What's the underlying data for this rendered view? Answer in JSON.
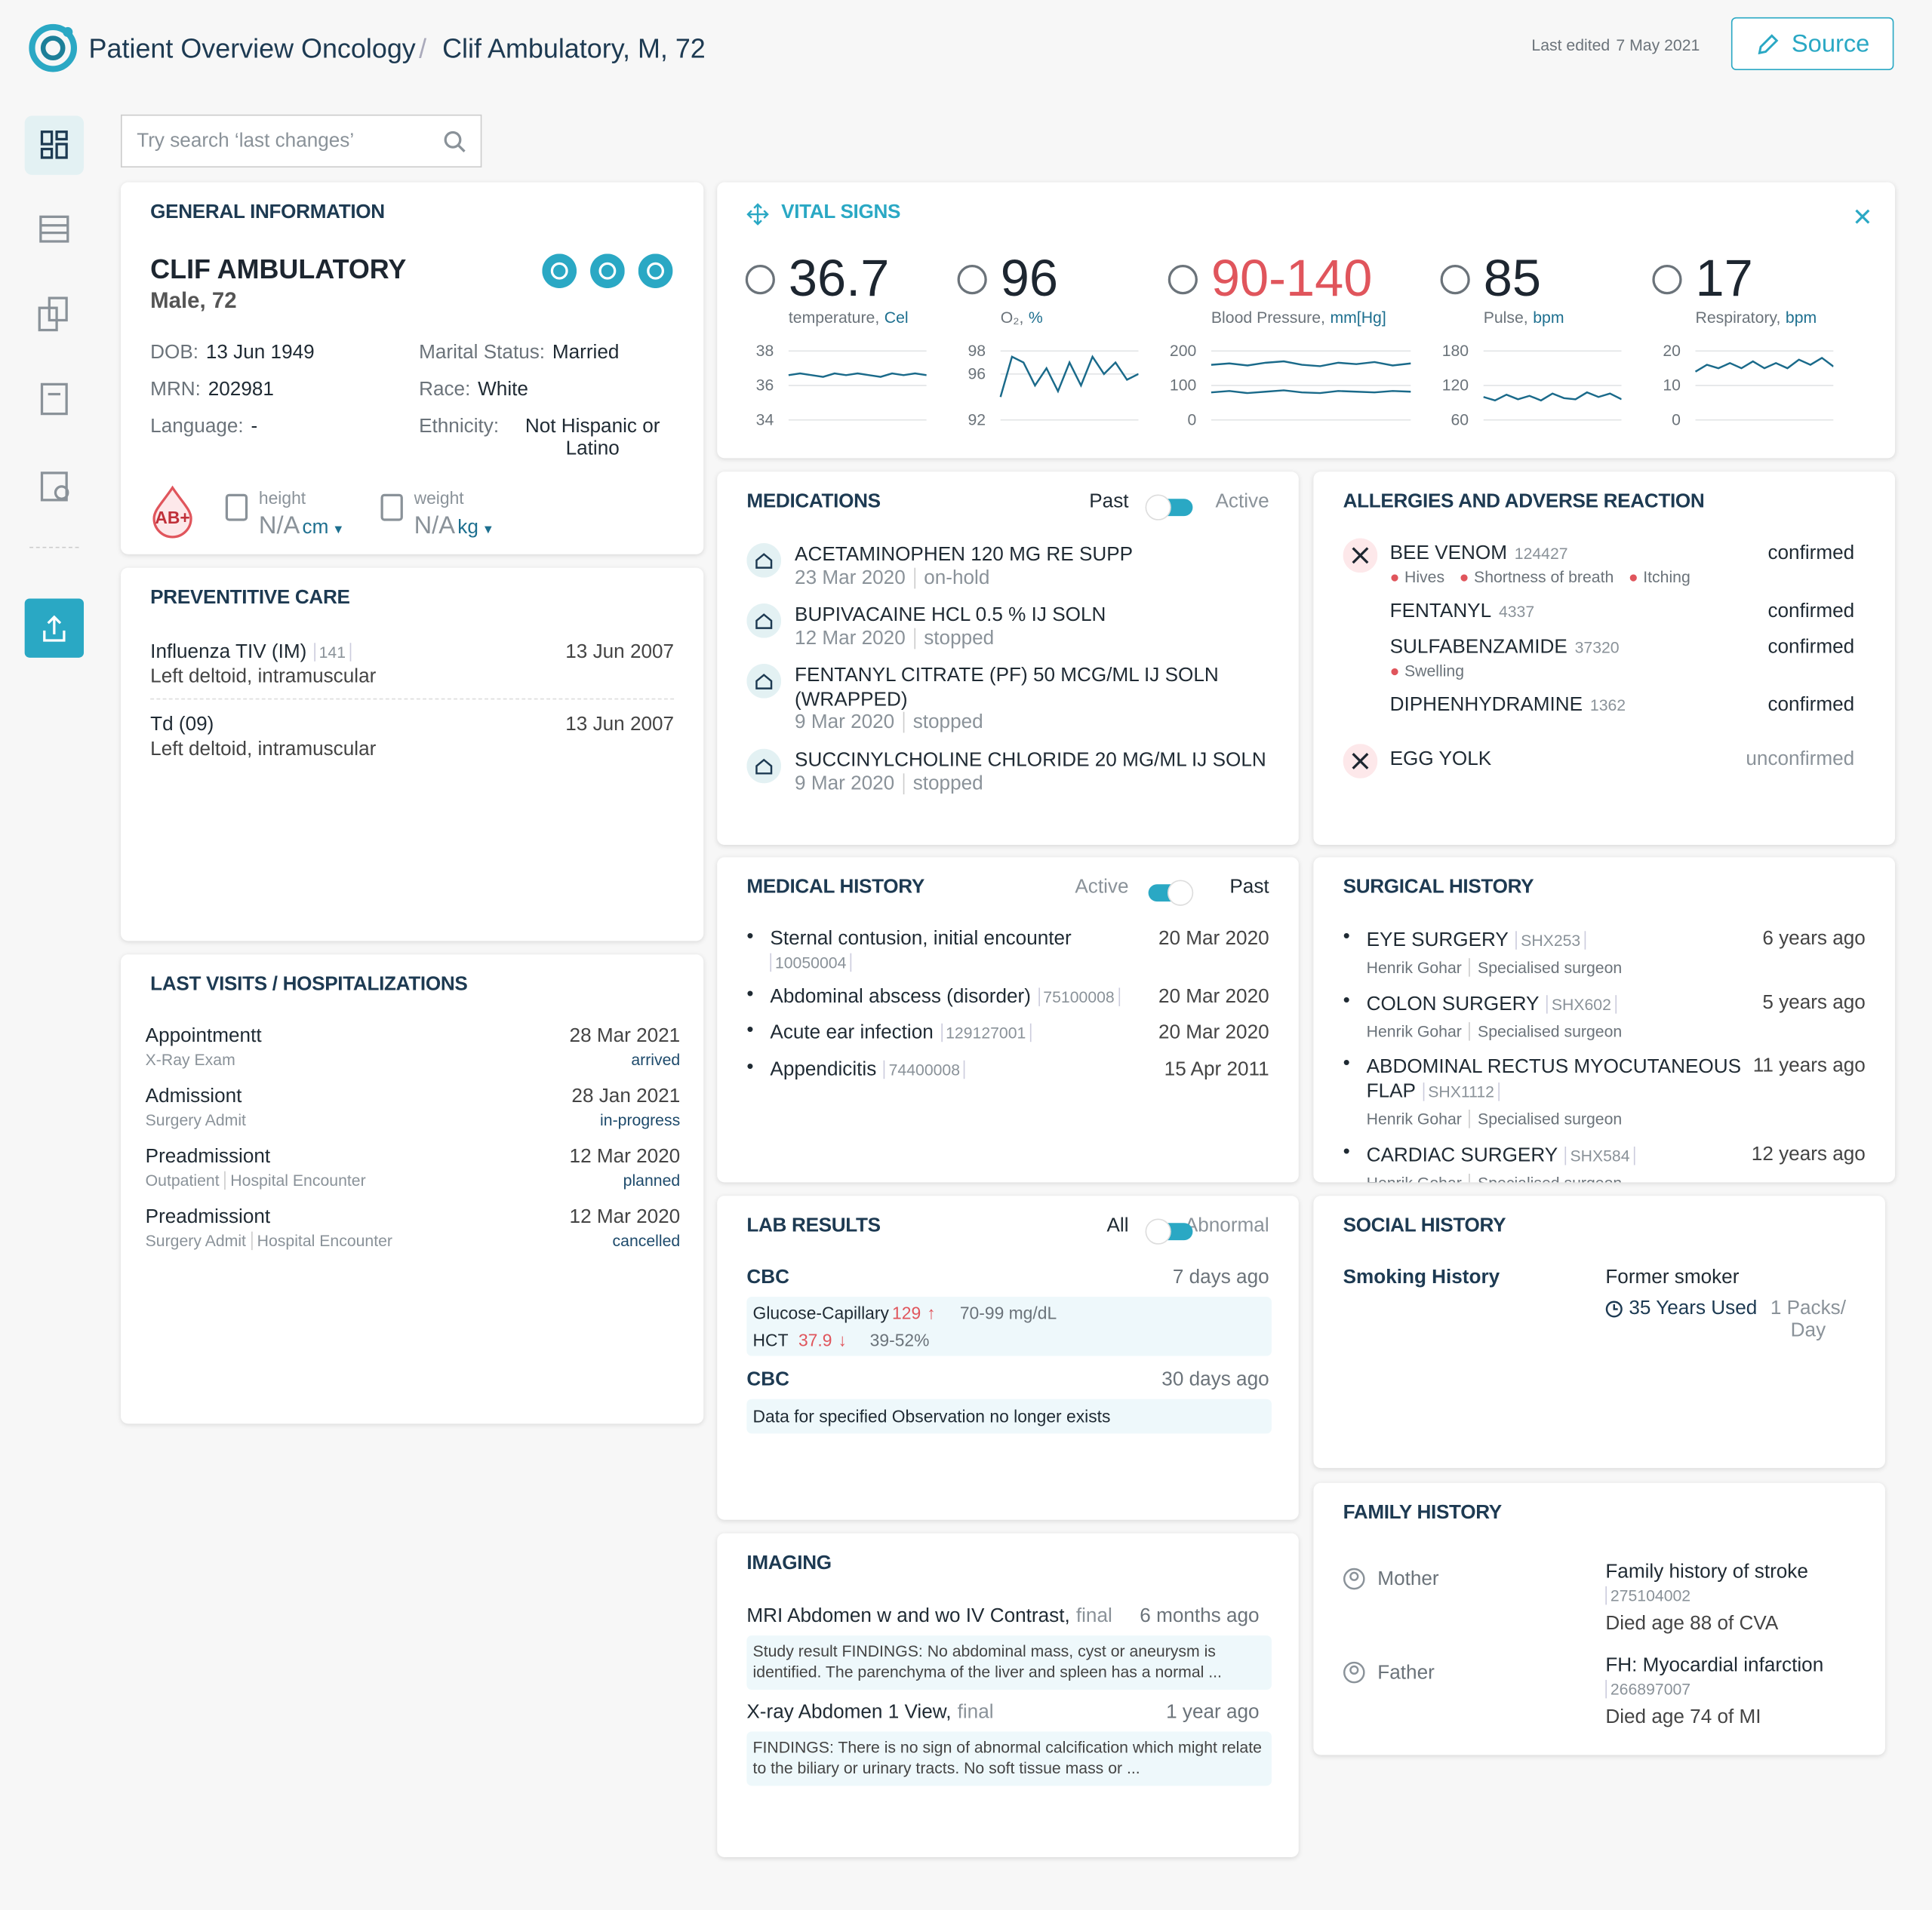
{
  "header": {
    "app_title": "Patient Overview Oncology",
    "separator": "/",
    "patient": "Clif Ambulatory, M, 72",
    "last_edited_label": "Last edited",
    "last_edited_date": "7 May 2021",
    "source_button": "Source"
  },
  "search_placeholder": "Try search ‘last changes’",
  "general": {
    "title": "GENERAL INFORMATION",
    "name": "CLIF AMBULATORY",
    "sex_age": "Male, 72",
    "fields_left": [
      {
        "label": "DOB:",
        "value": "13 Jun 1949"
      },
      {
        "label": "MRN:",
        "value": "202981"
      },
      {
        "label": "Language:",
        "value": "-"
      }
    ],
    "fields_right": [
      {
        "label": "Marital Status:",
        "value": "Married"
      },
      {
        "label": "Race:",
        "value": "White"
      },
      {
        "label": "Ethnicity:",
        "value": "Not Hispanic or Latino"
      }
    ],
    "blood_type": "AB+",
    "height_label": "height",
    "height_value": "N/A",
    "height_unit": "cm",
    "weight_label": "weight",
    "weight_value": "N/A",
    "weight_unit": "kg"
  },
  "preventive": {
    "title": "PREVENTITIVE CARE",
    "items": [
      {
        "name": "Influenza TIV (IM)",
        "code": "141",
        "site": "Left deltoid, intramuscular",
        "date": "13 Jun 2007"
      },
      {
        "name": "Td (09)",
        "site": "Left deltoid, intramuscular",
        "date": "13 Jun 2007"
      }
    ]
  },
  "visits": {
    "title": "LAST VISITS / HOSPITALIZATIONS",
    "items": [
      {
        "type": "Appointmentt",
        "details": [
          "X-Ray Exam"
        ],
        "date": "28 Mar 2021",
        "status": "arrived"
      },
      {
        "type": "Admissiont",
        "details": [
          "Surgery Admit"
        ],
        "date": "28 Jan 2021",
        "status": "in-progress"
      },
      {
        "type": "Preadmissiont",
        "details": [
          "Outpatient",
          "Hospital Encounter"
        ],
        "date": "12 Mar 2020",
        "status": "planned"
      },
      {
        "type": "Preadmissiont",
        "details": [
          "Surgery Admit",
          "Hospital Encounter"
        ],
        "date": "12 Mar 2020",
        "status": "cancelled"
      }
    ]
  },
  "vitals": {
    "title": "VITAL SIGNS",
    "items": [
      {
        "value": "36.7",
        "label": "temperature,",
        "unit": "Cel",
        "ylim": [
          34,
          38
        ],
        "yticks": [
          38,
          36,
          34
        ],
        "series": [
          [
            36.6,
            36.7,
            36.6,
            36.5,
            36.7,
            36.6,
            36.7,
            36.6,
            36.5,
            36.7,
            36.6,
            36.7,
            36.6
          ]
        ]
      },
      {
        "value": "96",
        "label": "O₂,",
        "unit": "%",
        "ylim": [
          92,
          98
        ],
        "yticks": [
          98,
          96,
          92
        ],
        "series": [
          [
            94,
            97.5,
            97,
            95,
            96.5,
            94.5,
            97,
            95,
            97.5,
            96,
            97,
            95.5,
            96
          ]
        ]
      },
      {
        "value": "90-140",
        "label": "Blood Pressure,",
        "unit": "mm[Hg]",
        "value_color": "#e0555c",
        "ylim": [
          0,
          200
        ],
        "yticks": [
          200,
          100,
          0
        ],
        "series": [
          [
            160,
            164,
            158,
            166,
            170,
            160,
            156,
            166,
            162,
            168,
            158,
            164
          ],
          [
            80,
            84,
            78,
            82,
            86,
            80,
            78,
            84,
            82,
            80,
            84,
            82
          ]
        ]
      },
      {
        "value": "85",
        "label": "Pulse,",
        "unit": "bpm",
        "ylim": [
          60,
          180
        ],
        "yticks": [
          180,
          120,
          60
        ],
        "series": [
          [
            100,
            94,
            104,
            96,
            102,
            94,
            106,
            98,
            96,
            108,
            100,
            106,
            96
          ]
        ]
      },
      {
        "value": "17",
        "label": "Respiratory,",
        "unit": "bpm",
        "ylim": [
          0,
          20
        ],
        "yticks": [
          20,
          10,
          0
        ],
        "series": [
          [
            14,
            16,
            15,
            16.5,
            15,
            17,
            15,
            16.5,
            15,
            17.5,
            16,
            18,
            15.5
          ]
        ]
      }
    ]
  },
  "medications": {
    "title": "MEDICATIONS",
    "toggle_left": "Past",
    "toggle_right": "Active",
    "items": [
      {
        "name": "ACETAMINOPHEN 120 MG RE SUPP",
        "date": "23 Mar 2020",
        "status": "on-hold"
      },
      {
        "name": "BUPIVACAINE HCL 0.5 % IJ SOLN",
        "date": "12 Mar 2020",
        "status": "stopped"
      },
      {
        "name": "FENTANYL CITRATE (PF) 50 MCG/ML IJ SOLN (WRAPPED)",
        "date": "9 Mar 2020",
        "status": "stopped"
      },
      {
        "name": "SUCCINYLCHOLINE CHLORIDE 20 MG/ML IJ SOLN",
        "date": "9 Mar 2020",
        "status": "stopped"
      }
    ]
  },
  "allergies": {
    "title": "ALLERGIES AND ADVERSE REACTION",
    "items": [
      {
        "name": "BEE VENOM",
        "code": "124427",
        "reactions": [
          "Hives",
          "Shortness of breath",
          "Itching"
        ],
        "status": "confirmed"
      },
      {
        "name": "FENTANYL",
        "code": "4337",
        "reactions": [],
        "status": "confirmed"
      },
      {
        "name": "SULFABENZAMIDE",
        "code": "37320",
        "reactions": [
          "Swelling"
        ],
        "status": "confirmed"
      },
      {
        "name": "DIPHENHYDRAMINE",
        "code": "1362",
        "reactions": [],
        "status": "confirmed"
      },
      {
        "name": "EGG YOLK",
        "reactions": [],
        "status": "unconfirmed"
      }
    ]
  },
  "medical_history": {
    "title": "MEDICAL HISTORY",
    "toggle_left": "Active",
    "toggle_right": "Past",
    "items": [
      {
        "name": "Sternal contusion, initial encounter",
        "code": "10050004",
        "date": "20 Mar 2020"
      },
      {
        "name": "Abdominal abscess (disorder)",
        "code": "75100008",
        "date": "20 Mar 2020"
      },
      {
        "name": "Acute ear infection",
        "code": "129127001",
        "date": "20 Mar 2020"
      },
      {
        "name": "Appendicitis",
        "code": "74400008",
        "date": "15 Apr 2011"
      }
    ]
  },
  "surgical_history": {
    "title": "SURGICAL HISTORY",
    "items": [
      {
        "name": "EYE SURGERY",
        "code": "SHX253",
        "surgeon": "Henrik Gohar",
        "role": "Specialised surgeon",
        "when": "6 years ago"
      },
      {
        "name": "COLON SURGERY",
        "code": "SHX602",
        "surgeon": "Henrik Gohar",
        "role": "Specialised surgeon",
        "when": "5 years ago"
      },
      {
        "name": "ABDOMINAL RECTUS MYOCUTANEOUS FLAP",
        "code": "SHX1112",
        "surgeon": "Henrik Gohar",
        "role": "Specialised surgeon",
        "when": "11 years ago"
      },
      {
        "name": "CARDIAC SURGERY",
        "code": "SHX584",
        "surgeon": "Henrik Gohar",
        "role": "Specialised surgeon",
        "when": "12 years ago"
      }
    ]
  },
  "lab_results": {
    "title": "LAB RESULTS",
    "toggle_left": "All",
    "toggle_right": "Abnormal",
    "groups": [
      {
        "name": "CBC",
        "when": "7 days ago",
        "rows": [
          {
            "test": "Glucose-Capillary",
            "value": "129",
            "direction": "up",
            "range": "70-99 mg/dL"
          },
          {
            "test": "HCT",
            "value": "37.9",
            "direction": "down",
            "range": "39-52%"
          }
        ]
      },
      {
        "name": "CBC",
        "when": "30 days ago",
        "message": "Data for specified Observation no longer exists"
      }
    ]
  },
  "imaging": {
    "title": "IMAGING",
    "items": [
      {
        "name": "MRI Abdomen w and wo IV Contrast,",
        "status": "final",
        "when": "6 months ago",
        "summary": "Study result FINDINGS: No abdominal mass, cyst or aneurysm is identified.  The parenchyma of the liver and spleen has a normal ..."
      },
      {
        "name": "X-ray Abdomen 1 View,",
        "status": "final",
        "when": "1 year ago",
        "summary": "FINDINGS:  There is no sign of abnormal calcification which might relate to the  biliary or urinary tracts.  No soft tissue mass or ..."
      }
    ]
  },
  "social_history": {
    "title": "SOCIAL HISTORY",
    "label": "Smoking History",
    "status": "Former smoker",
    "years": "35 Years Used",
    "packs": "1 Packs/ Day"
  },
  "family_history": {
    "title": "FAMILY HISTORY",
    "items": [
      {
        "relation": "Mother",
        "condition": "Family history of stroke",
        "code": "275104002",
        "note": "Died age 88 of CVA"
      },
      {
        "relation": "Father",
        "condition": "FH: Myocardial infarction",
        "code": "266897007",
        "note": "Died age 74 of MI"
      }
    ]
  }
}
